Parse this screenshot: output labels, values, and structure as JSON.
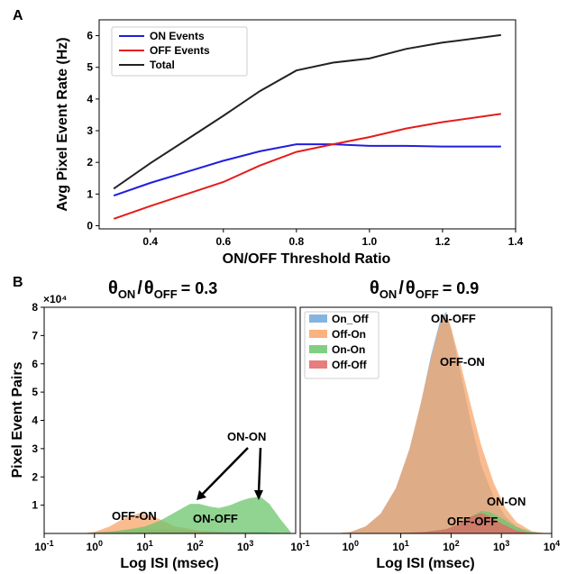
{
  "panel_a_label": "A",
  "panel_b_label": "B",
  "chart_data": [
    {
      "type": "line",
      "xlabel": "ON/OFF Threshold Ratio",
      "ylabel": "Avg Pixel Event Rate (Hz)",
      "xlim": [
        0.26,
        1.4
      ],
      "ylim": [
        -0.1,
        6.5
      ],
      "xticks": [
        "0.4",
        "0.6",
        "0.8",
        "1.0",
        "1.2",
        "1.4"
      ],
      "yticks": [
        "0",
        "1",
        "2",
        "3",
        "4",
        "5",
        "6"
      ],
      "legend": "top-left",
      "x": [
        0.3,
        0.4,
        0.5,
        0.6,
        0.7,
        0.8,
        0.9,
        1.0,
        1.1,
        1.2,
        1.36
      ],
      "series": [
        {
          "name": "ON Events",
          "color": "#1f1fe0",
          "values": [
            0.95,
            1.35,
            1.7,
            2.05,
            2.35,
            2.57,
            2.57,
            2.52,
            2.52,
            2.5,
            2.5
          ]
        },
        {
          "name": "OFF Events",
          "color": "#e51c1c",
          "values": [
            0.22,
            0.62,
            1.0,
            1.38,
            1.9,
            2.33,
            2.57,
            2.8,
            3.07,
            3.27,
            3.53
          ]
        },
        {
          "name": "Total",
          "color": "#222222",
          "values": [
            1.17,
            1.97,
            2.72,
            3.47,
            4.25,
            4.9,
            5.15,
            5.28,
            5.58,
            5.78,
            6.02
          ]
        }
      ]
    },
    {
      "type": "area",
      "title_base": "θ",
      "title_sub1": "ON",
      "title_sep": "/",
      "title_sub2": "OFF",
      "title_value": "= 0.3",
      "xlabel": "Log ISI (msec)",
      "ylabel": "Pixel Event Pairs",
      "scale": "×10⁴",
      "xscale": "log",
      "xlim": [
        0.1,
        10000
      ],
      "ylim": [
        0,
        8
      ],
      "yticks": [
        "1",
        "2",
        "3",
        "4",
        "5",
        "6",
        "7",
        "8"
      ],
      "xticks": [
        {
          "base": "10",
          "exp": "-1"
        },
        {
          "base": "10",
          "exp": "0"
        },
        {
          "base": "10",
          "exp": "1"
        },
        {
          "base": "10",
          "exp": "2"
        },
        {
          "base": "10",
          "exp": "3"
        }
      ],
      "series": [
        {
          "name": "On_Off",
          "color": "#6fa8d8",
          "x": [
            0.6,
            1,
            3,
            10,
            30,
            60,
            100,
            200,
            400,
            1000,
            2000,
            4000,
            7000
          ],
          "values": [
            0,
            0.05,
            0.1,
            0.15,
            0.15,
            0.12,
            0.1,
            0.08,
            0.05,
            0.05,
            0.05,
            0.03,
            0
          ]
        },
        {
          "name": "Off-On",
          "color": "#f8a56a",
          "x": [
            0.6,
            1,
            2,
            4,
            8,
            15,
            25,
            40,
            70,
            120,
            200,
            400,
            1000,
            3000
          ],
          "values": [
            0,
            0.05,
            0.25,
            0.55,
            0.72,
            0.6,
            0.42,
            0.25,
            0.18,
            0.1,
            0.06,
            0.03,
            0.01,
            0
          ]
        },
        {
          "name": "On-On",
          "color": "#6cc56c",
          "x": [
            0.8,
            2,
            5,
            10,
            20,
            40,
            80,
            120,
            200,
            300,
            500,
            800,
            1200,
            2000,
            3000,
            5000,
            8000
          ],
          "values": [
            0,
            0.05,
            0.15,
            0.25,
            0.45,
            0.75,
            1.05,
            1.05,
            0.95,
            0.9,
            1.0,
            1.15,
            1.25,
            1.3,
            1.05,
            0.5,
            0.05
          ]
        },
        {
          "name": "Off-Off",
          "color": "#e36666",
          "x": [
            1,
            10,
            100,
            1000,
            5000
          ],
          "values": [
            0,
            0.02,
            0.03,
            0.02,
            0
          ]
        }
      ],
      "annotations": [
        "OFF-ON",
        "ON-OFF",
        "ON-ON"
      ]
    },
    {
      "type": "area",
      "title_base": "θ",
      "title_sub1": "ON",
      "title_sep": "/",
      "title_sub2": "OFF",
      "title_value": "= 0.9",
      "xlabel": "Log ISI (msec)",
      "xscale": "log",
      "xlim": [
        0.1,
        10000
      ],
      "ylim": [
        0,
        8
      ],
      "xticks": [
        {
          "base": "10",
          "exp": "-1"
        },
        {
          "base": "10",
          "exp": "0"
        },
        {
          "base": "10",
          "exp": "1"
        },
        {
          "base": "10",
          "exp": "2"
        },
        {
          "base": "10",
          "exp": "3"
        },
        {
          "base": "10",
          "exp": "4"
        }
      ],
      "legend": "top-left",
      "series": [
        {
          "name": "On_Off",
          "color": "#6fa8d8",
          "x": [
            0.5,
            1,
            2,
            4,
            8,
            15,
            25,
            40,
            60,
            80,
            100,
            150,
            250,
            400,
            700,
            1200,
            2000,
            4000,
            8000
          ],
          "values": [
            0,
            0.05,
            0.25,
            0.7,
            1.6,
            3.0,
            4.6,
            6.3,
            7.5,
            7.85,
            7.2,
            5.8,
            3.9,
            2.4,
            1.3,
            0.6,
            0.25,
            0.05,
            0
          ]
        },
        {
          "name": "Off-On",
          "color": "#f8a56a",
          "x": [
            0.5,
            1,
            2,
            4,
            8,
            15,
            25,
            40,
            60,
            80,
            100,
            150,
            250,
            400,
            700,
            1200,
            2000,
            4000,
            8000
          ],
          "values": [
            0,
            0.05,
            0.25,
            0.7,
            1.6,
            3.0,
            4.6,
            6.2,
            7.4,
            7.75,
            7.3,
            6.1,
            4.5,
            3.1,
            1.8,
            0.9,
            0.4,
            0.08,
            0
          ]
        },
        {
          "name": "On-On",
          "color": "#6cc56c",
          "x": [
            2,
            10,
            30,
            80,
            150,
            250,
            400,
            600,
            1000,
            1500,
            2500,
            4000,
            6000
          ],
          "values": [
            0,
            0.02,
            0.05,
            0.15,
            0.35,
            0.6,
            0.8,
            0.75,
            0.55,
            0.35,
            0.15,
            0.05,
            0
          ]
        },
        {
          "name": "Off-Off",
          "color": "#e36666",
          "x": [
            5,
            30,
            80,
            150,
            250,
            400,
            600,
            1000,
            2000,
            4000
          ],
          "values": [
            0,
            0.05,
            0.15,
            0.35,
            0.6,
            0.72,
            0.6,
            0.35,
            0.1,
            0
          ]
        }
      ],
      "annotations": [
        "ON-OFF",
        "OFF-ON",
        "ON-ON",
        "OFF-OFF"
      ]
    }
  ]
}
